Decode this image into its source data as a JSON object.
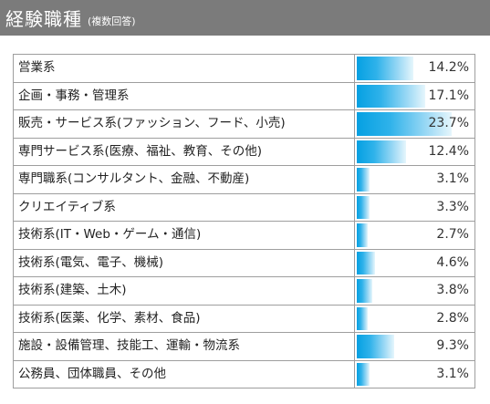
{
  "header": {
    "title": "経験職種",
    "subtitle": "(複数回答)"
  },
  "colors": {
    "header_bg": "#7b7b7b",
    "bar": "#05a0e2",
    "border": "#9e9e9e"
  },
  "chart_data": {
    "type": "bar",
    "orientation": "horizontal",
    "title": "経験職種",
    "subtitle": "(複数回答)",
    "unit": "%",
    "categories": [
      "営業系",
      "企画・事務・管理系",
      "販売・サービス系(ファッション、フード、小売)",
      "専門サービス系(医療、福祉、教育、その他)",
      "専門職系(コンサルタント、金融、不動産)",
      "クリエイティブ系",
      "技術系(IT・Web・ゲーム・通信)",
      "技術系(電気、電子、機械)",
      "技術系(建築、土木)",
      "技術系(医薬、化学、素材、食品)",
      "施設・設備管理、技能工、運輸・物流系",
      "公務員、団体職員、その他"
    ],
    "values": [
      14.2,
      17.1,
      23.7,
      12.4,
      3.1,
      3.3,
      2.7,
      4.6,
      3.8,
      2.8,
      9.3,
      3.1
    ],
    "labels": [
      "14.2%",
      "17.1%",
      "23.7%",
      "12.4%",
      "3.1%",
      "3.3%",
      "2.7%",
      "4.6%",
      "3.8%",
      "2.8%",
      "9.3%",
      "3.1%"
    ],
    "xlim": [
      0,
      26
    ],
    "grid": false,
    "legend": "none"
  }
}
